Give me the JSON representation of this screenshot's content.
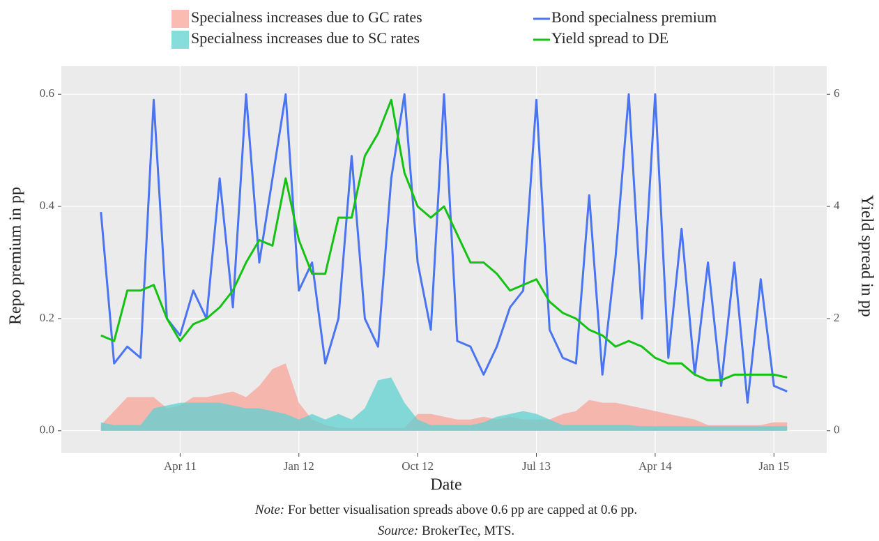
{
  "chart_data": {
    "type": "line",
    "legend": {
      "position": "top"
    },
    "xlabel": "Date",
    "ylabel": "Repo premium in pp",
    "y2label": "Yield spread in pp",
    "note_label": "Note:",
    "note": "For better visualisation spreads above 0.6 pp are capped at 0.6 pp.",
    "source_label": "Source:",
    "source": "BrokerTec, MTS.",
    "grid": true,
    "xlim": [
      "2010-07",
      "2015-05"
    ],
    "xticks": [
      {
        "value": "2011-04",
        "label": "Apr 11"
      },
      {
        "value": "2012-01",
        "label": "Jan 12"
      },
      {
        "value": "2012-10",
        "label": "Oct 12"
      },
      {
        "value": "2013-07",
        "label": "Jul 13"
      },
      {
        "value": "2014-04",
        "label": "Apr 14"
      },
      {
        "value": "2015-01",
        "label": "Jan 15"
      }
    ],
    "ylim": [
      -0.04,
      0.65
    ],
    "yticks": [
      {
        "value": 0,
        "label": "0.0"
      },
      0.2,
      0.4,
      0.6
    ],
    "y2lim": [
      -0.4,
      6.5
    ],
    "y2ticks": [
      0,
      2,
      4,
      6
    ],
    "x": [
      "2010-10",
      "2010-11",
      "2010-12",
      "2011-01",
      "2011-02",
      "2011-03",
      "2011-04",
      "2011-05",
      "2011-06",
      "2011-07",
      "2011-08",
      "2011-09",
      "2011-10",
      "2011-11",
      "2011-12",
      "2012-01",
      "2012-02",
      "2012-03",
      "2012-04",
      "2012-05",
      "2012-06",
      "2012-07",
      "2012-08",
      "2012-09",
      "2012-10",
      "2012-11",
      "2012-12",
      "2013-01",
      "2013-02",
      "2013-03",
      "2013-04",
      "2013-05",
      "2013-06",
      "2013-07",
      "2013-08",
      "2013-09",
      "2013-10",
      "2013-11",
      "2013-12",
      "2014-01",
      "2014-02",
      "2014-03",
      "2014-04",
      "2014-05",
      "2014-06",
      "2014-07",
      "2014-08",
      "2014-09",
      "2014-10",
      "2014-11",
      "2014-12",
      "2015-01",
      "2015-02"
    ],
    "series": [
      {
        "name": "Specialness increases due to GC rates",
        "kind": "area",
        "color": "#f8a49a",
        "values": [
          0.01,
          0.035,
          0.06,
          0.06,
          0.06,
          0.04,
          0.045,
          0.06,
          0.06,
          0.065,
          0.07,
          0.06,
          0.08,
          0.11,
          0.12,
          0.05,
          0.02,
          0.01,
          0.005,
          0.005,
          0.005,
          0.005,
          0.005,
          0.005,
          0.03,
          0.03,
          0.025,
          0.02,
          0.02,
          0.025,
          0.02,
          0.025,
          0.02,
          0.02,
          0.02,
          0.03,
          0.035,
          0.055,
          0.05,
          0.05,
          0.045,
          0.04,
          0.035,
          0.03,
          0.025,
          0.02,
          0.01,
          0.01,
          0.01,
          0.01,
          0.01,
          0.015,
          0.015
        ]
      },
      {
        "name": "Specialness increases due to SC rates",
        "kind": "area",
        "color": "#5fd0d0",
        "values": [
          0.015,
          0.01,
          0.01,
          0.01,
          0.04,
          0.045,
          0.05,
          0.05,
          0.05,
          0.05,
          0.045,
          0.04,
          0.04,
          0.035,
          0.03,
          0.02,
          0.03,
          0.02,
          0.03,
          0.02,
          0.04,
          0.09,
          0.095,
          0.05,
          0.02,
          0.01,
          0.01,
          0.01,
          0.01,
          0.015,
          0.025,
          0.03,
          0.035,
          0.03,
          0.02,
          0.01,
          0.01,
          0.01,
          0.01,
          0.01,
          0.01,
          0.008,
          0.008,
          0.008,
          0.008,
          0.008,
          0.008,
          0.008,
          0.008,
          0.008,
          0.008,
          0.008,
          0.008
        ]
      },
      {
        "name": "Bond specialness premium",
        "kind": "line",
        "color": "#4a74f0",
        "values": [
          0.39,
          0.12,
          0.15,
          0.13,
          0.59,
          0.2,
          0.17,
          0.25,
          0.2,
          0.45,
          0.22,
          0.6,
          0.3,
          0.45,
          0.6,
          0.25,
          0.3,
          0.12,
          0.2,
          0.49,
          0.2,
          0.15,
          0.45,
          0.6,
          0.3,
          0.18,
          0.6,
          0.16,
          0.15,
          0.1,
          0.15,
          0.22,
          0.25,
          0.59,
          0.18,
          0.13,
          0.12,
          0.42,
          0.1,
          0.31,
          0.6,
          0.2,
          0.6,
          0.13,
          0.36,
          0.1,
          0.3,
          0.08,
          0.3,
          0.05,
          0.27,
          0.08,
          0.07
        ]
      },
      {
        "name": "Yield spread to DE",
        "kind": "line",
        "axis": "y2",
        "color": "#14c214",
        "values": [
          1.7,
          1.6,
          2.5,
          2.5,
          2.6,
          2.0,
          1.6,
          1.9,
          2.0,
          2.2,
          2.5,
          3.0,
          3.4,
          3.3,
          4.5,
          3.4,
          2.8,
          2.8,
          3.8,
          3.8,
          4.9,
          5.3,
          5.9,
          4.6,
          4.0,
          3.8,
          4.0,
          3.5,
          3.0,
          3.0,
          2.8,
          2.5,
          2.6,
          2.7,
          2.3,
          2.1,
          2.0,
          1.8,
          1.7,
          1.5,
          1.6,
          1.5,
          1.3,
          1.2,
          1.2,
          1.0,
          0.9,
          0.9,
          1.0,
          1.0,
          1.0,
          1.0,
          0.95
        ]
      }
    ]
  }
}
